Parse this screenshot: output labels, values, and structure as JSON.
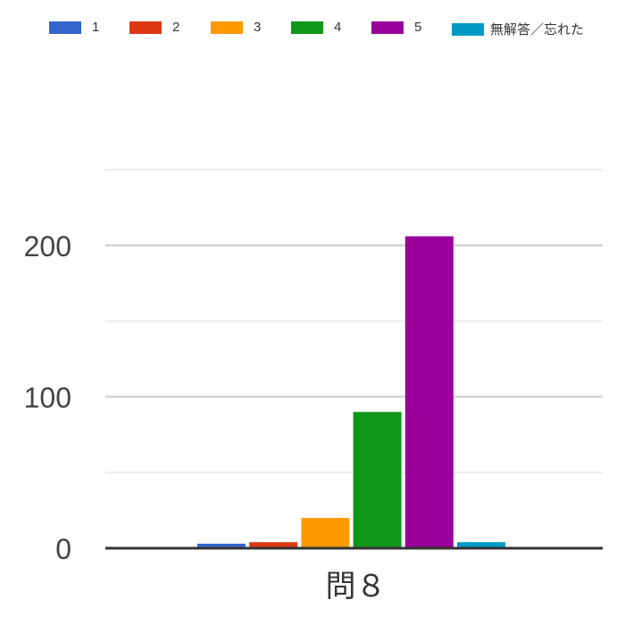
{
  "chart_data": {
    "type": "bar",
    "title": "",
    "xlabel": "",
    "ylabel": "",
    "categories": [
      "問８"
    ],
    "series": [
      {
        "name": "1",
        "color": "#3366cc",
        "values": [
          3
        ]
      },
      {
        "name": "2",
        "color": "#dc3912",
        "values": [
          4
        ]
      },
      {
        "name": "3",
        "color": "#ff9900",
        "values": [
          20
        ]
      },
      {
        "name": "4",
        "color": "#109618",
        "values": [
          90
        ]
      },
      {
        "name": "5",
        "color": "#990099",
        "values": [
          206
        ]
      },
      {
        "name": "無解答／忘れた",
        "color": "#0099c6",
        "values": [
          4
        ]
      }
    ],
    "ylim": [
      0,
      250
    ],
    "yticks": [
      "0",
      "100",
      "200"
    ],
    "grid": true,
    "legend": "top"
  }
}
